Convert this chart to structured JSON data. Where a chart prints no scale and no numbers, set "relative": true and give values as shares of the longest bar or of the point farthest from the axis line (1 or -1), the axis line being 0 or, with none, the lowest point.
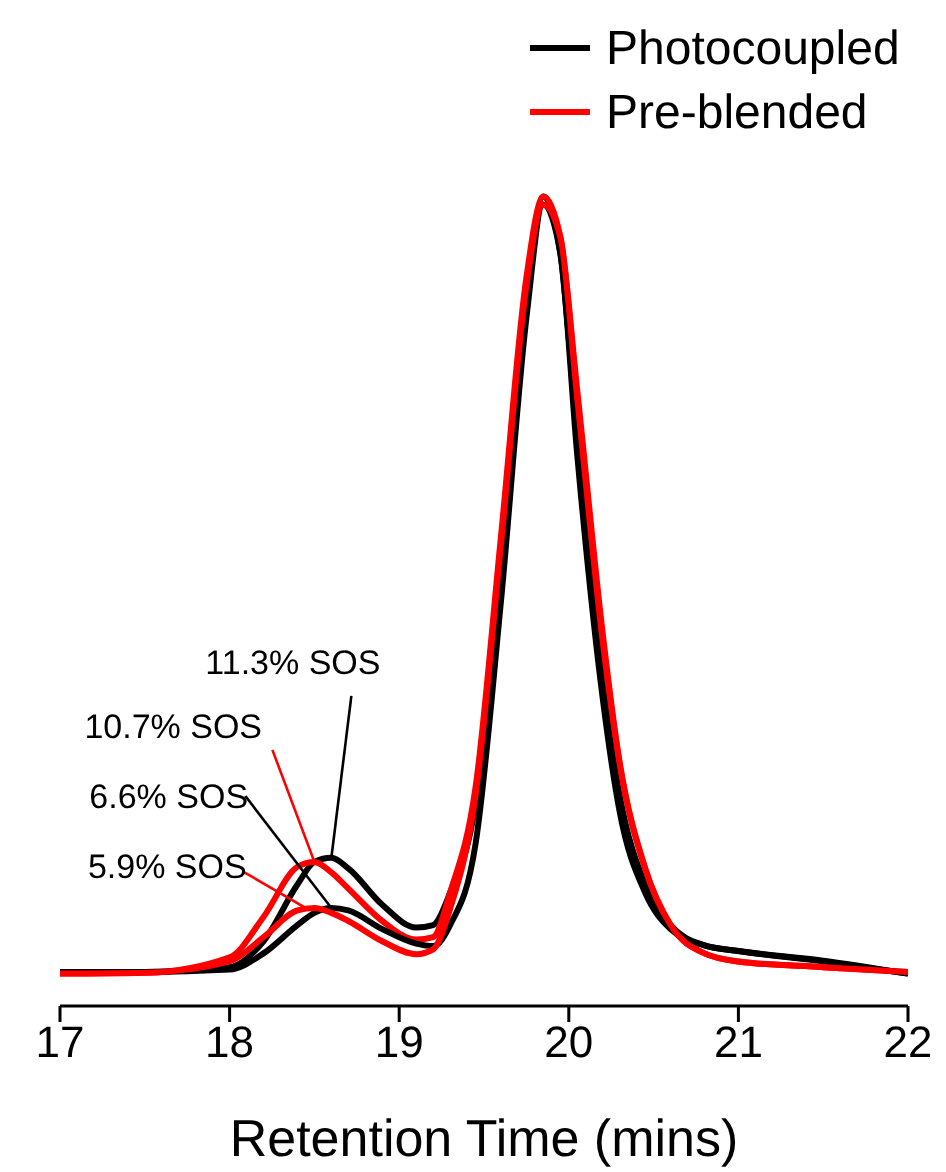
{
  "chart_data": {
    "type": "line",
    "relative": true,
    "xlabel": "Retention Time (mins)",
    "xlim": [
      17,
      22
    ],
    "xticks": [
      17,
      18,
      19,
      20,
      21,
      22
    ],
    "grid": false,
    "legend": "top right",
    "marker": "none",
    "line_style": "solid",
    "x": [
      17,
      17.5,
      18,
      18.2,
      18.4,
      18.5,
      18.6,
      18.7,
      18.9,
      19.1,
      19.2,
      19.3,
      19.45,
      19.6,
      19.75,
      19.85,
      19.95,
      20.05,
      20.2,
      20.3,
      20.45,
      20.6,
      20.8,
      21,
      21.5,
      22
    ],
    "series": [
      {
        "name": "Photocoupled",
        "color": "#000000",
        "values": [
          0.042,
          0.042,
          0.048,
          0.08,
          0.15,
          0.178,
          0.183,
          0.17,
          0.125,
          0.097,
          0.1,
          0.14,
          0.25,
          0.55,
          0.87,
          1.0,
          0.93,
          0.7,
          0.4,
          0.26,
          0.15,
          0.1,
          0.075,
          0.068,
          0.055,
          0.04
        ]
      },
      {
        "name": "Pre-blended",
        "color": "#ff0000",
        "values": [
          0.04,
          0.041,
          0.06,
          0.11,
          0.172,
          0.178,
          0.165,
          0.145,
          0.105,
          0.082,
          0.085,
          0.14,
          0.27,
          0.58,
          0.9,
          1.0,
          0.95,
          0.76,
          0.46,
          0.3,
          0.17,
          0.1,
          0.065,
          0.055,
          0.048,
          0.042
        ]
      },
      {
        "color": "#000000",
        "values": [
          0.042,
          0.042,
          0.045,
          0.065,
          0.1,
          0.115,
          0.121,
          0.118,
          0.095,
          0.077,
          0.074,
          0.1,
          0.2,
          0.5,
          0.85,
          0.99,
          0.93,
          0.68,
          0.38,
          0.24,
          0.14,
          0.095,
          0.075,
          0.068,
          0.056,
          0.04
        ]
      },
      {
        "color": "#ff0000",
        "values": [
          0.04,
          0.041,
          0.055,
          0.085,
          0.118,
          0.121,
          0.115,
          0.105,
          0.08,
          0.064,
          0.07,
          0.12,
          0.26,
          0.57,
          0.89,
          0.99,
          0.95,
          0.75,
          0.45,
          0.3,
          0.17,
          0.1,
          0.065,
          0.055,
          0.048,
          0.042
        ]
      }
    ],
    "annotations": [
      {
        "text": "11.3% SOS",
        "x": 18.6,
        "y": 0.183
      },
      {
        "text": "10.7% SOS",
        "x": 18.5,
        "y": 0.178
      },
      {
        "text": "6.6% SOS",
        "x": 18.6,
        "y": 0.121
      },
      {
        "text": "5.9% SOS",
        "x": 18.45,
        "y": 0.121
      }
    ]
  }
}
